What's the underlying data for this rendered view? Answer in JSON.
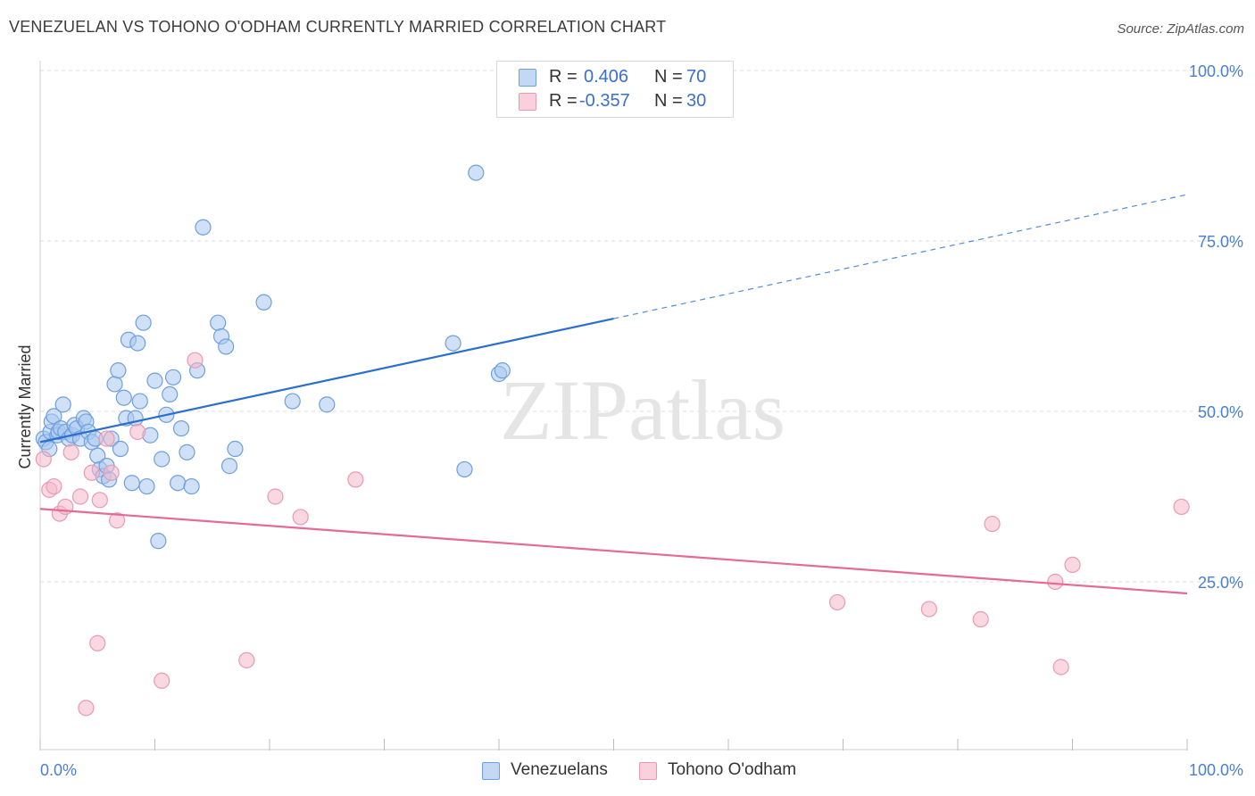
{
  "title": "VENEZUELAN VS TOHONO O'ODHAM CURRENTLY MARRIED CORRELATION CHART",
  "source": "Source: ZipAtlas.com",
  "watermark": "ZIPatlas",
  "legend": {
    "rows": [
      {
        "r_label": "R =",
        "r_value": "0.406",
        "n_label": "N =",
        "n_value": "70",
        "color": "#a9c8f0"
      },
      {
        "r_label": "R =",
        "r_value": "-0.357",
        "n_label": "N =",
        "n_value": "30",
        "color": "#f5b8cb"
      }
    ]
  },
  "bottom_legend": [
    "Venezuelans",
    "Tohono O'odham"
  ],
  "chart_data": {
    "type": "scatter",
    "xlabel": "",
    "ylabel": "Currently Married",
    "xlim": [
      0,
      100
    ],
    "ylim": [
      0,
      100
    ],
    "x_tick_labels": [
      "0.0%",
      "100.0%"
    ],
    "y_tick_labels": [
      "25.0%",
      "50.0%",
      "75.0%",
      "100.0%"
    ],
    "y_ticks": [
      25,
      50,
      75,
      100
    ],
    "grid": true,
    "series": [
      {
        "name": "Venezuelans",
        "color": "#a9c8f0",
        "stroke": "#6f9fdd",
        "line_color": "#2a6fd0",
        "trend": {
          "x0": 0,
          "y0": 45.5,
          "x1": 50,
          "y1": 63.6,
          "dash_x1": 100,
          "dash_y1": 81.8
        },
        "points": [
          [
            0.3,
            46
          ],
          [
            0.5,
            45.5
          ],
          [
            0.8,
            44.5
          ],
          [
            0.9,
            47
          ],
          [
            1.0,
            48.5
          ],
          [
            1.2,
            49.3
          ],
          [
            1.5,
            46.5
          ],
          [
            1.6,
            47
          ],
          [
            1.8,
            47.5
          ],
          [
            2.0,
            51
          ],
          [
            2.2,
            47
          ],
          [
            2.5,
            46
          ],
          [
            2.8,
            46.5
          ],
          [
            3.0,
            48
          ],
          [
            3.2,
            47.5
          ],
          [
            3.5,
            46
          ],
          [
            3.8,
            49
          ],
          [
            4.0,
            48.5
          ],
          [
            4.2,
            47
          ],
          [
            4.5,
            45.5
          ],
          [
            4.8,
            46
          ],
          [
            5.0,
            43.5
          ],
          [
            5.2,
            41.5
          ],
          [
            5.5,
            40.5
          ],
          [
            5.8,
            42
          ],
          [
            6.0,
            40
          ],
          [
            6.2,
            46
          ],
          [
            6.5,
            54
          ],
          [
            6.8,
            56
          ],
          [
            7.0,
            44.5
          ],
          [
            7.3,
            52
          ],
          [
            7.5,
            49
          ],
          [
            7.7,
            60.5
          ],
          [
            8.0,
            39.5
          ],
          [
            8.3,
            49
          ],
          [
            8.5,
            60
          ],
          [
            8.7,
            51.5
          ],
          [
            9.0,
            63
          ],
          [
            9.3,
            39
          ],
          [
            9.6,
            46.5
          ],
          [
            10.0,
            54.5
          ],
          [
            10.3,
            31
          ],
          [
            10.6,
            43
          ],
          [
            11.0,
            49.5
          ],
          [
            11.3,
            52.5
          ],
          [
            11.6,
            55
          ],
          [
            12.0,
            39.5
          ],
          [
            12.3,
            47.5
          ],
          [
            12.8,
            44
          ],
          [
            13.2,
            39
          ],
          [
            13.7,
            56
          ],
          [
            14.2,
            77
          ],
          [
            15.5,
            63
          ],
          [
            15.8,
            61
          ],
          [
            16.2,
            59.5
          ],
          [
            16.5,
            42
          ],
          [
            17.0,
            44.5
          ],
          [
            19.5,
            66
          ],
          [
            22,
            51.5
          ],
          [
            25,
            51
          ],
          [
            36,
            60
          ],
          [
            37,
            41.5
          ],
          [
            38,
            85
          ],
          [
            40,
            55.5
          ],
          [
            40.3,
            56
          ]
        ]
      },
      {
        "name": "Tohono O'odham",
        "color": "#f5b8cb",
        "stroke": "#e89ab3",
        "line_color": "#e56a95",
        "trend": {
          "x0": 0,
          "y0": 35.7,
          "x1": 100,
          "y1": 23.3
        },
        "points": [
          [
            0.3,
            43
          ],
          [
            0.8,
            38.5
          ],
          [
            1.2,
            39
          ],
          [
            1.7,
            35
          ],
          [
            2.2,
            36
          ],
          [
            2.7,
            44
          ],
          [
            3.5,
            37.5
          ],
          [
            4.0,
            6.5
          ],
          [
            4.5,
            41
          ],
          [
            5.0,
            16
          ],
          [
            5.2,
            37
          ],
          [
            5.8,
            46
          ],
          [
            6.2,
            41
          ],
          [
            6.7,
            34
          ],
          [
            8.5,
            47
          ],
          [
            10.6,
            10.5
          ],
          [
            13.5,
            57.5
          ],
          [
            18.0,
            13.5
          ],
          [
            20.5,
            37.5
          ],
          [
            22.7,
            34.5
          ],
          [
            27.5,
            40
          ],
          [
            69.5,
            22
          ],
          [
            77.5,
            21
          ],
          [
            82,
            19.5
          ],
          [
            83,
            33.5
          ],
          [
            88.5,
            25
          ],
          [
            89,
            12.5
          ],
          [
            90,
            27.5
          ],
          [
            99.5,
            36
          ]
        ]
      }
    ]
  }
}
